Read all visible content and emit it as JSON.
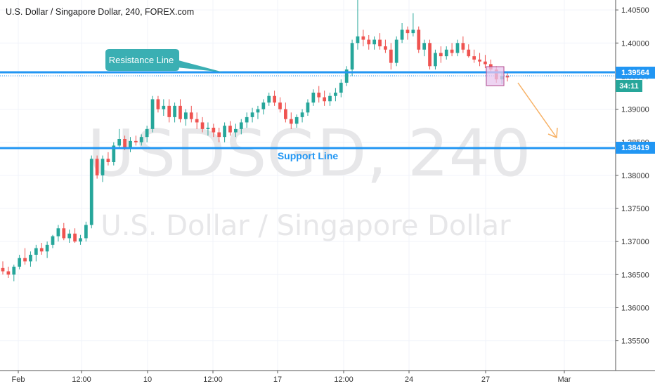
{
  "header": {
    "title": "U.S. Dollar / Singapore Dollar, 240, FOREX.com"
  },
  "watermark": {
    "symbol": "USDSGD, 240",
    "name": "U.S. Dollar / Singapore Dollar"
  },
  "annotations": {
    "resistance_label": "Resistance Line",
    "support_label": "Support Line"
  },
  "price_tags": {
    "resistance": "1.39564",
    "countdown": "34:11",
    "support": "1.38419"
  },
  "colors": {
    "up": "#26a69a",
    "down": "#ef5350",
    "line": "#2196f3",
    "callout": "#3aafb3",
    "arrow": "#f7b267",
    "box_fill": "#e8c5ee",
    "box_stroke": "#b04a8e"
  },
  "chart_data": {
    "type": "candlestick",
    "symbol": "USDSGD",
    "timeframe": "240",
    "ylim": [
      1.3505,
      1.4065
    ],
    "y_ticks": [
      "1.35500",
      "1.36000",
      "1.36500",
      "1.37000",
      "1.37500",
      "1.38000",
      "1.38500",
      "1.39000",
      "1.39500",
      "1.40000",
      "1.40500"
    ],
    "x_ticks": [
      "Feb",
      "12:00",
      "10",
      "12:00",
      "17",
      "12:00",
      "24",
      "27",
      "Mar"
    ],
    "resistance_level": 1.39564,
    "support_level": 1.38419,
    "candles": [
      [
        1.366,
        1.367,
        1.365,
        1.3655
      ],
      [
        1.3655,
        1.3662,
        1.3645,
        1.365
      ],
      [
        1.365,
        1.3665,
        1.364,
        1.3662
      ],
      [
        1.3662,
        1.368,
        1.3658,
        1.3675
      ],
      [
        1.3675,
        1.369,
        1.3665,
        1.367
      ],
      [
        1.367,
        1.3685,
        1.3662,
        1.368
      ],
      [
        1.368,
        1.3695,
        1.367,
        1.369
      ],
      [
        1.369,
        1.3698,
        1.368,
        1.3685
      ],
      [
        1.3685,
        1.37,
        1.3675,
        1.3695
      ],
      [
        1.3695,
        1.371,
        1.369,
        1.3708
      ],
      [
        1.3708,
        1.3725,
        1.37,
        1.372
      ],
      [
        1.372,
        1.3728,
        1.3702,
        1.3705
      ],
      [
        1.3705,
        1.3718,
        1.3698,
        1.3712
      ],
      [
        1.3712,
        1.372,
        1.3698,
        1.37
      ],
      [
        1.37,
        1.371,
        1.3695,
        1.3705
      ],
      [
        1.3705,
        1.373,
        1.37,
        1.3725
      ],
      [
        1.3725,
        1.383,
        1.372,
        1.3825
      ],
      [
        1.3825,
        1.383,
        1.3795,
        1.38
      ],
      [
        1.38,
        1.383,
        1.379,
        1.3825
      ],
      [
        1.3825,
        1.3835,
        1.3815,
        1.382
      ],
      [
        1.382,
        1.385,
        1.3815,
        1.3845
      ],
      [
        1.3845,
        1.387,
        1.384,
        1.3855
      ],
      [
        1.3855,
        1.386,
        1.3838,
        1.3842
      ],
      [
        1.3842,
        1.3858,
        1.3835,
        1.3852
      ],
      [
        1.3852,
        1.386,
        1.3845,
        1.385
      ],
      [
        1.385,
        1.3862,
        1.3845,
        1.3858
      ],
      [
        1.3858,
        1.3875,
        1.385,
        1.387
      ],
      [
        1.387,
        1.392,
        1.3865,
        1.3915
      ],
      [
        1.3915,
        1.392,
        1.3895,
        1.39
      ],
      [
        1.39,
        1.3915,
        1.389,
        1.3905
      ],
      [
        1.3905,
        1.3915,
        1.388,
        1.3888
      ],
      [
        1.3888,
        1.391,
        1.388,
        1.3905
      ],
      [
        1.3905,
        1.3915,
        1.388,
        1.3885
      ],
      [
        1.3885,
        1.39,
        1.3875,
        1.3895
      ],
      [
        1.3895,
        1.3905,
        1.388,
        1.3885
      ],
      [
        1.3885,
        1.3895,
        1.387,
        1.388
      ],
      [
        1.388,
        1.3888,
        1.3865,
        1.387
      ],
      [
        1.387,
        1.388,
        1.386,
        1.3872
      ],
      [
        1.3872,
        1.3878,
        1.3858,
        1.3865
      ],
      [
        1.3865,
        1.3872,
        1.385,
        1.3858
      ],
      [
        1.3858,
        1.388,
        1.385,
        1.3875
      ],
      [
        1.3875,
        1.3882,
        1.386,
        1.3865
      ],
      [
        1.3865,
        1.3878,
        1.3858,
        1.387
      ],
      [
        1.387,
        1.3885,
        1.3862,
        1.388
      ],
      [
        1.388,
        1.3895,
        1.3872,
        1.3888
      ],
      [
        1.3888,
        1.3902,
        1.388,
        1.3895
      ],
      [
        1.3895,
        1.3905,
        1.3885,
        1.39
      ],
      [
        1.39,
        1.3915,
        1.3892,
        1.391
      ],
      [
        1.391,
        1.3925,
        1.3905,
        1.392
      ],
      [
        1.392,
        1.3928,
        1.3905,
        1.391
      ],
      [
        1.391,
        1.3918,
        1.3895,
        1.39
      ],
      [
        1.39,
        1.391,
        1.388,
        1.3885
      ],
      [
        1.3885,
        1.3895,
        1.387,
        1.3878
      ],
      [
        1.3878,
        1.3892,
        1.3872,
        1.3888
      ],
      [
        1.3888,
        1.39,
        1.388,
        1.3895
      ],
      [
        1.3895,
        1.3915,
        1.389,
        1.391
      ],
      [
        1.391,
        1.393,
        1.3905,
        1.3925
      ],
      [
        1.3925,
        1.3935,
        1.391,
        1.3918
      ],
      [
        1.3918,
        1.3928,
        1.3905,
        1.3912
      ],
      [
        1.3912,
        1.3925,
        1.3905,
        1.392
      ],
      [
        1.392,
        1.3932,
        1.3912,
        1.3925
      ],
      [
        1.3925,
        1.3945,
        1.3918,
        1.394
      ],
      [
        1.394,
        1.3965,
        1.3935,
        1.396
      ],
      [
        1.396,
        1.4005,
        1.395,
        1.4
      ],
      [
        1.4,
        1.4065,
        1.399,
        1.401
      ],
      [
        1.401,
        1.402,
        1.3995,
        1.4005
      ],
      [
        1.4005,
        1.4012,
        1.399,
        1.3998
      ],
      [
        1.3998,
        1.401,
        1.399,
        1.4005
      ],
      [
        1.4005,
        1.4015,
        1.399,
        1.3995
      ],
      [
        1.3995,
        1.4005,
        1.3985,
        1.399
      ],
      [
        1.399,
        1.4,
        1.396,
        1.397
      ],
      [
        1.397,
        1.401,
        1.3965,
        1.4005
      ],
      [
        1.4005,
        1.403,
        1.4,
        1.402
      ],
      [
        1.402,
        1.4025,
        1.4005,
        1.4015
      ],
      [
        1.4015,
        1.4045,
        1.401,
        1.402
      ],
      [
        1.402,
        1.4025,
        1.3985,
        1.399
      ],
      [
        1.399,
        1.4005,
        1.398,
        1.4
      ],
      [
        1.4,
        1.4005,
        1.396,
        1.3965
      ],
      [
        1.3965,
        1.399,
        1.396,
        1.3985
      ],
      [
        1.3985,
        1.3995,
        1.397,
        1.398
      ],
      [
        1.398,
        1.3995,
        1.3975,
        1.399
      ],
      [
        1.399,
        1.4,
        1.398,
        1.3985
      ],
      [
        1.3985,
        1.4005,
        1.398,
        1.4
      ],
      [
        1.4,
        1.401,
        1.3985,
        1.399
      ],
      [
        1.399,
        1.3998,
        1.3978,
        1.398
      ],
      [
        1.398,
        1.399,
        1.397,
        1.3975
      ],
      [
        1.3975,
        1.3985,
        1.3965,
        1.3972
      ],
      [
        1.3972,
        1.3982,
        1.3962,
        1.3968
      ],
      [
        1.3968,
        1.3975,
        1.3955,
        1.396
      ],
      [
        1.396,
        1.3965,
        1.394,
        1.3945
      ],
      [
        1.3945,
        1.3955,
        1.3938,
        1.395
      ],
      [
        1.395,
        1.3955,
        1.3942,
        1.3948
      ]
    ]
  }
}
